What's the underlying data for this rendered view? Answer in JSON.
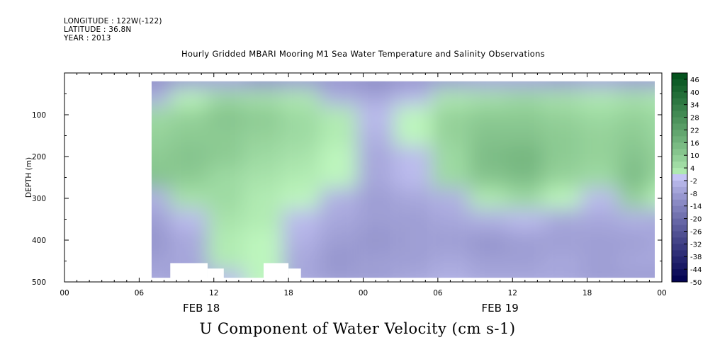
{
  "header": {
    "longitude": "LONGITUDE : 122W(-122)",
    "latitude": "LATITUDE : 36.8N",
    "year": "YEAR : 2013"
  },
  "plot_title": "Hourly Gridded MBARI Mooring M1 Sea Water Temperature and Salinity Observations",
  "main_title": "U Component of Water Velocity (cm s-1)",
  "chart_data": {
    "type": "heatmap",
    "title": "U Component of Water Velocity (cm s-1)",
    "subtitle": "Hourly Gridded MBARI Mooring M1 Sea Water Temperature and Salinity Observations",
    "ylabel": "DEPTH (m)",
    "xlabel": "",
    "xlim_hours": [
      0,
      48
    ],
    "ylim": [
      500,
      0
    ],
    "y_reversed": true,
    "data_start_hour": 7,
    "depth_range": [
      20,
      490
    ],
    "x_tick_labels": [
      "00",
      "06",
      "12",
      "18",
      "00",
      "06",
      "12",
      "18",
      "00"
    ],
    "x_tick_hours": [
      0,
      6,
      12,
      18,
      24,
      30,
      36,
      42,
      48
    ],
    "date_labels": [
      {
        "label": "FEB 18",
        "hour": 11
      },
      {
        "label": "FEB 19",
        "hour": 35
      }
    ],
    "y_tick_labels": [
      "100",
      "200",
      "300",
      "400",
      "500"
    ],
    "y_tick_values": [
      100,
      200,
      300,
      400,
      500
    ],
    "colorbar": {
      "labels": [
        "46",
        "40",
        "34",
        "28",
        "22",
        "16",
        "10",
        "4",
        "-2",
        "-8",
        "-14",
        "-20",
        "-26",
        "-32",
        "-38",
        "-44",
        "-50"
      ],
      "min": -50,
      "max": 49,
      "step": 3
    },
    "u_velocity_grid": {
      "hours": [
        7,
        10,
        13,
        16,
        19,
        22,
        25,
        28,
        31,
        34,
        37,
        40,
        43,
        46,
        48
      ],
      "depths": [
        20,
        60,
        100,
        150,
        200,
        250,
        300,
        350,
        400,
        450,
        490
      ],
      "values": [
        [
          -12,
          -8,
          -6,
          -10,
          -8,
          -10,
          -12,
          -10,
          -8,
          -6,
          -6,
          -8,
          -6,
          -8,
          -8
        ],
        [
          -4,
          0,
          6,
          4,
          2,
          -4,
          -6,
          -2,
          2,
          4,
          6,
          4,
          2,
          4,
          2
        ],
        [
          6,
          8,
          12,
          10,
          6,
          2,
          -2,
          0,
          8,
          10,
          10,
          8,
          6,
          8,
          6
        ],
        [
          8,
          10,
          10,
          8,
          6,
          2,
          -4,
          0,
          8,
          12,
          12,
          10,
          8,
          10,
          6
        ],
        [
          10,
          12,
          10,
          6,
          4,
          0,
          -6,
          -2,
          6,
          14,
          16,
          10,
          8,
          12,
          8
        ],
        [
          12,
          10,
          6,
          4,
          2,
          0,
          -6,
          -2,
          6,
          12,
          14,
          8,
          6,
          14,
          6
        ],
        [
          -4,
          4,
          6,
          2,
          0,
          -4,
          -8,
          -6,
          -4,
          2,
          6,
          0,
          -2,
          8,
          0
        ],
        [
          -8,
          -2,
          4,
          2,
          -2,
          -6,
          -8,
          -8,
          -6,
          -4,
          -2,
          -6,
          -6,
          -4,
          -6
        ],
        [
          -10,
          -6,
          2,
          0,
          -4,
          -8,
          -10,
          -8,
          -8,
          -10,
          -8,
          -8,
          -8,
          -8,
          -6
        ],
        [
          -8,
          -6,
          2,
          0,
          -6,
          -10,
          -8,
          -8,
          -6,
          -8,
          -8,
          -6,
          -8,
          -6,
          -6
        ],
        [
          -6,
          -8,
          -2,
          0,
          -6,
          -8,
          -8,
          -6,
          -4,
          -6,
          -6,
          -6,
          -8,
          -8,
          -8
        ]
      ]
    },
    "data_gaps": [
      {
        "hours": [
          8.5,
          11.5
        ],
        "depths": [
          455,
          500
        ]
      },
      {
        "hours": [
          11.5,
          12.8
        ],
        "depths": [
          468,
          500
        ]
      },
      {
        "hours": [
          16,
          18
        ],
        "depths": [
          455,
          500
        ]
      },
      {
        "hours": [
          18,
          19
        ],
        "depths": [
          468,
          500
        ]
      }
    ],
    "colors": {
      "most_negative": "#00004f",
      "near_zero_negative": "#c8c8f8",
      "near_zero_positive": "#bdf6bd",
      "most_positive": "#004f1a"
    }
  }
}
